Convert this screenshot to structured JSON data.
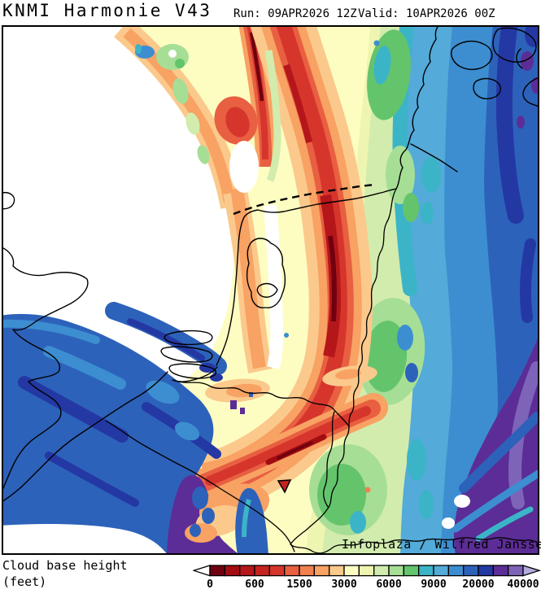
{
  "header": {
    "model_title": "KNMI Harmonie V43",
    "run_label": "Run: 09APR2026 12Z",
    "valid_label": "Valid: 10APR2026 00Z"
  },
  "map": {
    "attribution": "Infoplaza / Wilfred Janssen"
  },
  "legend": {
    "title_line1": "Cloud base height",
    "title_line2": "(feet)",
    "tick_labels": [
      "0",
      "600",
      "1500",
      "3000",
      "6000",
      "9000",
      "20000",
      "40000"
    ],
    "palette": [
      "#700010",
      "#a20d12",
      "#b5161a",
      "#c62320",
      "#d6352c",
      "#e85f41",
      "#f2814e",
      "#f8a263",
      "#fbc98c",
      "#fdfdc2",
      "#eef5b0",
      "#d2ecae",
      "#a6de96",
      "#64c46c",
      "#3cb4c8",
      "#54aad8",
      "#3c8ed0",
      "#2d62ba",
      "#2438a4",
      "#5c2d96",
      "#7e64b8"
    ],
    "underflow_color": "#ffffff",
    "overflow_color": "#b4aade",
    "outline_color": "#000000"
  },
  "chart_data": {
    "type": "heatmap",
    "title": "Cloud base height (feet)",
    "units": "feet",
    "scale_tick_labels": [
      "0",
      "600",
      "1500",
      "3000",
      "6000",
      "9000",
      "20000",
      "40000"
    ],
    "palette": [
      "#700010",
      "#a20d12",
      "#b5161a",
      "#c62320",
      "#d6352c",
      "#e85f41",
      "#f2814e",
      "#f8a263",
      "#fbc98c",
      "#fdfdc2",
      "#eef5b0",
      "#d2ecae",
      "#a6de96",
      "#64c46c",
      "#3cb4c8",
      "#54aad8",
      "#3c8ed0",
      "#2d62ba",
      "#2438a4",
      "#5c2d96",
      "#7e64b8"
    ],
    "underflow_color": "#ffffff",
    "overflow_color": "#b4aade",
    "legend_position": "bottom"
  }
}
